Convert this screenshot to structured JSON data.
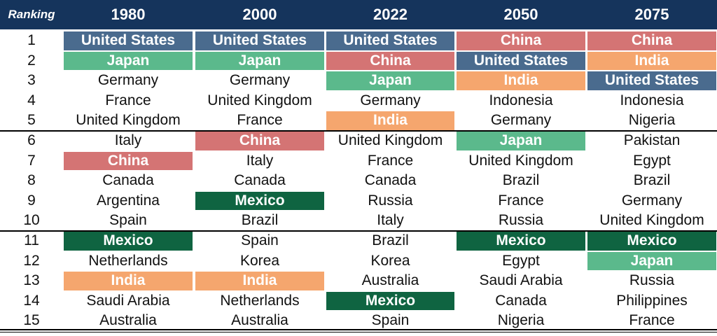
{
  "chart_data": {
    "type": "table",
    "corner_label": "Ranking",
    "columns": [
      "1980",
      "2000",
      "2022",
      "2050",
      "2075"
    ],
    "rows": [
      {
        "rank": "1",
        "cells": [
          "United States",
          "United States",
          "United States",
          "China",
          "China"
        ]
      },
      {
        "rank": "2",
        "cells": [
          "Japan",
          "Japan",
          "China",
          "United States",
          "India"
        ]
      },
      {
        "rank": "3",
        "cells": [
          "Germany",
          "Germany",
          "Japan",
          "India",
          "United States"
        ]
      },
      {
        "rank": "4",
        "cells": [
          "France",
          "United Kingdom",
          "Germany",
          "Indonesia",
          "Indonesia"
        ]
      },
      {
        "rank": "5",
        "cells": [
          "United Kingdom",
          "France",
          "India",
          "Germany",
          "Nigeria"
        ]
      },
      {
        "rank": "6",
        "cells": [
          "Italy",
          "China",
          "United Kingdom",
          "Japan",
          "Pakistan"
        ]
      },
      {
        "rank": "7",
        "cells": [
          "China",
          "Italy",
          "France",
          "United Kingdom",
          "Egypt"
        ]
      },
      {
        "rank": "8",
        "cells": [
          "Canada",
          "Canada",
          "Canada",
          "Brazil",
          "Brazil"
        ]
      },
      {
        "rank": "9",
        "cells": [
          "Argentina",
          "Mexico",
          "Russia",
          "France",
          "Germany"
        ]
      },
      {
        "rank": "10",
        "cells": [
          "Spain",
          "Brazil",
          "Italy",
          "Russia",
          "United Kingdom"
        ]
      },
      {
        "rank": "11",
        "cells": [
          "Mexico",
          "Spain",
          "Brazil",
          "Mexico",
          "Mexico"
        ]
      },
      {
        "rank": "12",
        "cells": [
          "Netherlands",
          "Korea",
          "Korea",
          "Egypt",
          "Japan"
        ]
      },
      {
        "rank": "13",
        "cells": [
          "India",
          "India",
          "Australia",
          "Saudi Arabia",
          "Russia"
        ]
      },
      {
        "rank": "14",
        "cells": [
          "Saudi Arabia",
          "Netherlands",
          "Mexico",
          "Canada",
          "Philippines"
        ]
      },
      {
        "rank": "15",
        "cells": [
          "Australia",
          "Australia",
          "Spain",
          "Nigeria",
          "France"
        ]
      }
    ],
    "highlight_colors": {
      "United States": "#4a6b8e",
      "China": "#d47474",
      "India": "#f5a66e",
      "Japan": "#5bb98c",
      "Mexico": "#0f6441"
    },
    "header_color": "#15345c"
  }
}
